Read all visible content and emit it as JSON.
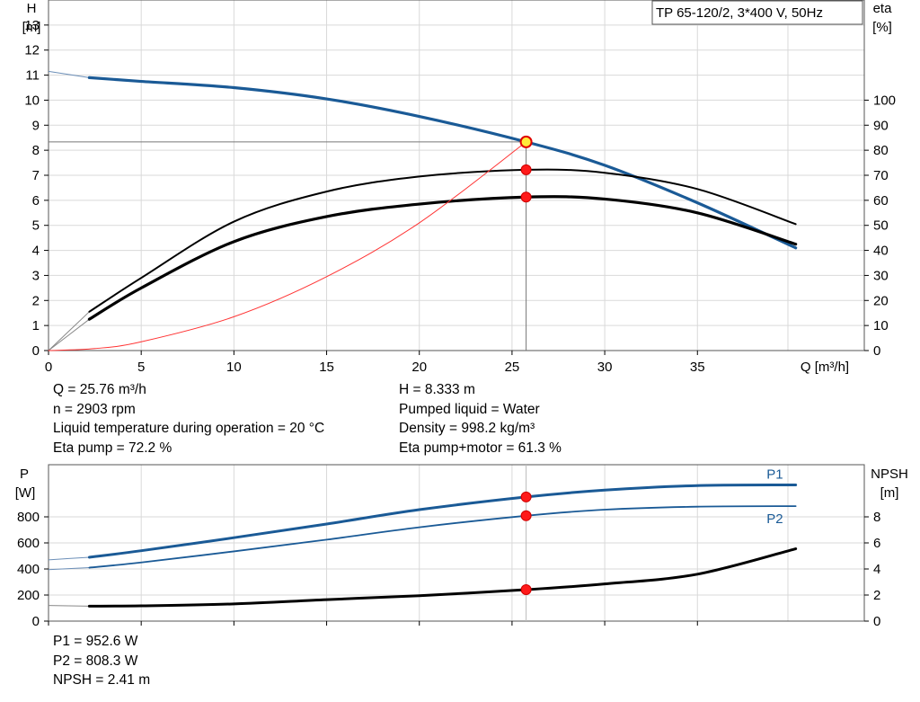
{
  "chart_data": [
    {
      "type": "line",
      "title_box": "TP 65-120/2, 3*400 V, 50Hz",
      "xlabel": "Q [m³/h]",
      "ylabel_left": [
        "H",
        "[m]"
      ],
      "ylabel_right": [
        "eta",
        "[%]"
      ],
      "xlim": [
        0,
        44
      ],
      "ylim_left": [
        0,
        14
      ],
      "ylim_right": [
        0,
        140
      ],
      "x_ticks": [
        0,
        5,
        10,
        15,
        20,
        25,
        30,
        35
      ],
      "y_ticks_left": [
        0,
        1,
        2,
        3,
        4,
        5,
        6,
        7,
        8,
        9,
        10,
        11,
        12,
        13
      ],
      "y_ticks_right": [
        0,
        10,
        20,
        30,
        40,
        50,
        60,
        70,
        80,
        90,
        100
      ],
      "grid": true,
      "operating_point": {
        "Q": 25.76,
        "H": 8.333
      },
      "series": [
        {
          "key": "H",
          "axis": "left",
          "color": "#1a5a96",
          "points": [
            [
              2.2,
              10.9
            ],
            [
              5,
              10.75
            ],
            [
              10,
              10.5
            ],
            [
              15,
              10.05
            ],
            [
              20,
              9.35
            ],
            [
              25.76,
              8.333
            ],
            [
              30,
              7.4
            ],
            [
              35,
              5.9
            ],
            [
              40.3,
              4.1
            ]
          ],
          "extrapolation": [
            [
              0,
              11.15
            ],
            [
              2.2,
              10.9
            ]
          ]
        },
        {
          "key": "eta_pump",
          "axis": "right",
          "color": "#000000",
          "points": [
            [
              2.2,
              15.5
            ],
            [
              5,
              29
            ],
            [
              10,
              51.5
            ],
            [
              15,
              63.5
            ],
            [
              20,
              69.5
            ],
            [
              25.76,
              72.2
            ],
            [
              30,
              71
            ],
            [
              35,
              64.5
            ],
            [
              40.3,
              50.5
            ]
          ],
          "extrapolation": [
            [
              0,
              0
            ],
            [
              2.2,
              15.5
            ]
          ]
        },
        {
          "key": "eta_total",
          "axis": "right",
          "color": "#000000",
          "points": [
            [
              2.2,
              12.5
            ],
            [
              5,
              25
            ],
            [
              10,
              43.5
            ],
            [
              15,
              53.5
            ],
            [
              20,
              58.5
            ],
            [
              25.76,
              61.3
            ],
            [
              30,
              60.5
            ],
            [
              35,
              55
            ],
            [
              40.3,
              42.5
            ]
          ],
          "extrapolation": [
            [
              0,
              0
            ],
            [
              2.2,
              12.5
            ]
          ]
        },
        {
          "key": "system",
          "axis": "left",
          "color": "#ff3333",
          "points": [
            [
              0,
              0
            ],
            [
              2.5,
              0.08
            ],
            [
              5,
              0.35
            ],
            [
              10,
              1.35
            ],
            [
              15,
              2.95
            ],
            [
              20,
              5.1
            ],
            [
              25.76,
              8.333
            ]
          ]
        }
      ],
      "marker_points": [
        {
          "x": 25.76,
          "y": 8.333,
          "axis": "left",
          "style": "duty"
        },
        {
          "x": 25.76,
          "y": 72.2,
          "axis": "right",
          "style": "dot"
        },
        {
          "x": 25.76,
          "y": 61.3,
          "axis": "right",
          "style": "dot"
        }
      ]
    },
    {
      "type": "line",
      "ylabel_left": [
        "P",
        "[W]"
      ],
      "ylabel_right": [
        "NPSH",
        "[m]"
      ],
      "xlim": [
        0,
        44
      ],
      "ylim_left": [
        0,
        1200
      ],
      "ylim_right": [
        0,
        12
      ],
      "x_ticks": [
        0,
        5,
        10,
        15,
        20,
        25,
        30,
        35
      ],
      "y_ticks_left": [
        0,
        200,
        400,
        600,
        800
      ],
      "y_ticks_right": [
        0,
        2,
        4,
        6,
        8
      ],
      "grid": true,
      "series": [
        {
          "key": "P1",
          "name": "P1",
          "axis": "left",
          "color": "#1a5a96",
          "points": [
            [
              2.2,
              490
            ],
            [
              5,
              540
            ],
            [
              10,
              640
            ],
            [
              15,
              745
            ],
            [
              20,
              855
            ],
            [
              25.76,
              952.6
            ],
            [
              30,
              1005
            ],
            [
              35,
              1040
            ],
            [
              40.3,
              1045
            ]
          ],
          "extrapolation": [
            [
              0,
              470
            ],
            [
              2.2,
              490
            ]
          ]
        },
        {
          "key": "P2",
          "name": "P2",
          "axis": "left",
          "color": "#1a5a96",
          "points": [
            [
              2.2,
              410
            ],
            [
              5,
              450
            ],
            [
              10,
              535
            ],
            [
              15,
              625
            ],
            [
              20,
              720
            ],
            [
              25.76,
              808.3
            ],
            [
              30,
              855
            ],
            [
              35,
              878
            ],
            [
              40.3,
              882
            ]
          ],
          "extrapolation": [
            [
              0,
              395
            ],
            [
              2.2,
              410
            ]
          ]
        },
        {
          "key": "NPSH",
          "axis": "right",
          "color": "#000000",
          "points": [
            [
              2.2,
              1.15
            ],
            [
              5,
              1.17
            ],
            [
              10,
              1.32
            ],
            [
              15,
              1.65
            ],
            [
              20,
              1.95
            ],
            [
              25.76,
              2.41
            ],
            [
              30,
              2.85
            ],
            [
              35,
              3.6
            ],
            [
              40.3,
              5.55
            ]
          ],
          "extrapolation": [
            [
              0,
              1.2
            ],
            [
              2.2,
              1.15
            ]
          ]
        }
      ],
      "marker_points": [
        {
          "x": 25.76,
          "y": 952.6,
          "axis": "left",
          "style": "dot"
        },
        {
          "x": 25.76,
          "y": 808.3,
          "axis": "left",
          "style": "dot"
        },
        {
          "x": 25.76,
          "y": 2.41,
          "axis": "right",
          "style": "dot"
        }
      ]
    }
  ],
  "info_top_left": [
    "Q = 25.76 m³/h",
    "n = 2903 rpm",
    "Liquid temperature during operation = 20 °C",
    "Eta pump = 72.2 %"
  ],
  "info_top_right": [
    "H = 8.333 m",
    "Pumped liquid = Water",
    "Density = 998.2 kg/m³",
    "Eta pump+motor = 61.3 %"
  ],
  "info_bottom": [
    "P1 = 952.6 W",
    "P2 = 808.3 W",
    "NPSH = 2.41 m"
  ]
}
